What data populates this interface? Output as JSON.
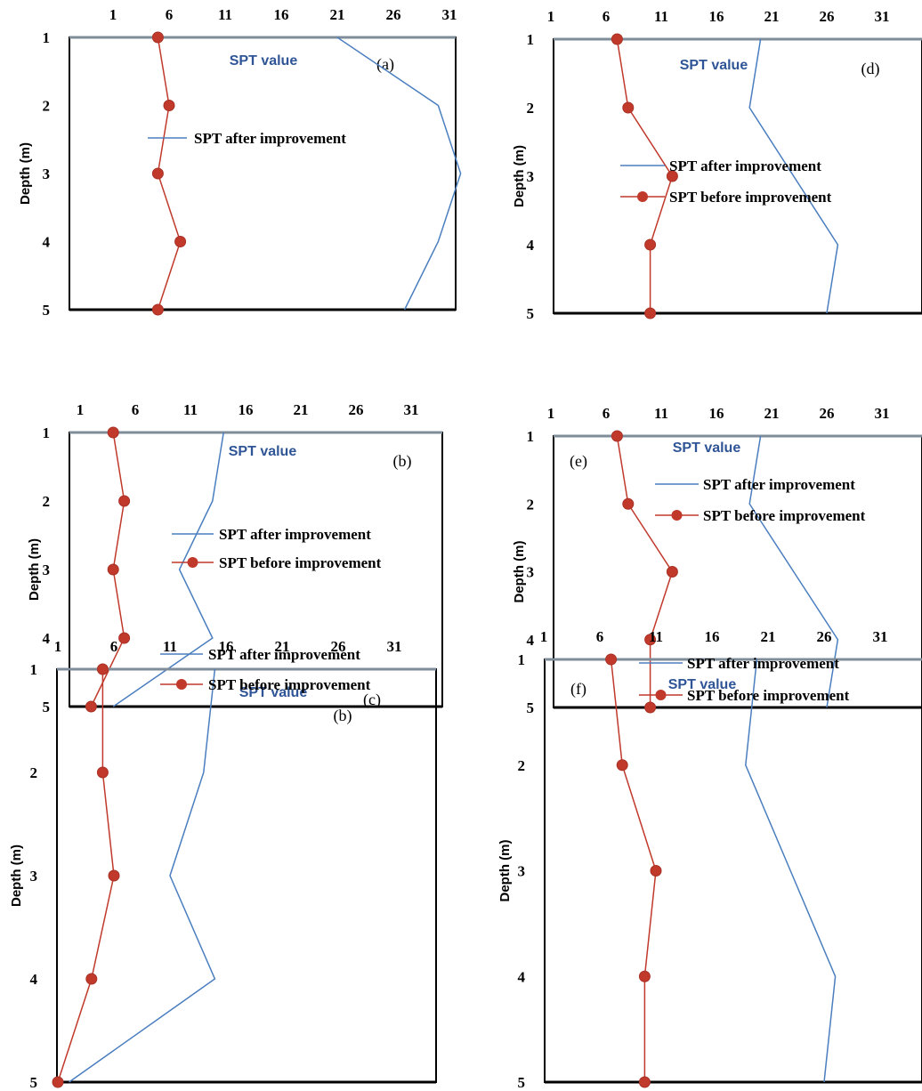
{
  "chart_data": [
    {
      "panel": "(a)",
      "type": "line",
      "xlabel": "SPT value",
      "ylabel": "Depth (m)",
      "x_ticks": [
        "1",
        "6",
        "11",
        "16",
        "21",
        "26",
        "31"
      ],
      "y_ticks": [
        "1",
        "2",
        "3",
        "4",
        "5"
      ],
      "xlim": [
        1,
        35
      ],
      "ylim": [
        1,
        5
      ],
      "series": [
        {
          "name": "SPT after improvement",
          "color": "#4a7ebf",
          "marker": false,
          "x": [
            21,
            30,
            32,
            30,
            27
          ],
          "depth": [
            1,
            2,
            3,
            4,
            5
          ]
        },
        {
          "name": "",
          "color": "#c0392b",
          "marker": true,
          "x": [
            5,
            6,
            5,
            7,
            5
          ],
          "depth": [
            1,
            2,
            3,
            4,
            5
          ]
        }
      ],
      "extra_labels": []
    },
    {
      "panel": "(b)",
      "type": "line",
      "xlabel": "SPT value",
      "ylabel": "Depth (m)",
      "x_ticks": [
        "1",
        "6",
        "11",
        "16",
        "21",
        "26",
        "31"
      ],
      "y_ticks": [
        "1",
        "2",
        "3",
        "4",
        "5"
      ],
      "xlim": [
        1,
        35
      ],
      "ylim": [
        1,
        5
      ],
      "series": [
        {
          "name": "SPT after improvement",
          "color": "#4a7ebf",
          "marker": false,
          "x": [
            14,
            13,
            10,
            13,
            4
          ],
          "depth": [
            1,
            2,
            3,
            4,
            5
          ]
        },
        {
          "name": "SPT before improvement",
          "color": "#c0392b",
          "marker": true,
          "x": [
            4,
            5,
            4,
            5,
            2
          ],
          "depth": [
            1,
            2,
            3,
            4,
            5
          ]
        }
      ],
      "extra_labels": []
    },
    {
      "panel": "(c)",
      "type": "line",
      "xlabel": "SPT value",
      "ylabel": "Depth (m)",
      "x_ticks": [
        "1",
        "6",
        "11",
        "16",
        "21",
        "26",
        "31"
      ],
      "y_ticks": [
        "1",
        "2",
        "3",
        "4",
        "5"
      ],
      "xlim": [
        1,
        35
      ],
      "ylim": [
        1,
        5
      ],
      "series": [
        {
          "name": "SPT after improvement",
          "color": "#4a7ebf",
          "marker": false,
          "x": [
            15,
            14,
            11,
            15,
            2
          ],
          "depth": [
            1,
            2,
            3,
            4,
            5
          ]
        },
        {
          "name": "SPT before improvement",
          "color": "#c0392b",
          "marker": true,
          "x": [
            5,
            5,
            6,
            4,
            1
          ],
          "depth": [
            1,
            2,
            3,
            4,
            5
          ]
        }
      ],
      "extra_labels": [
        "(b)"
      ]
    },
    {
      "panel": "(d)",
      "type": "line",
      "xlabel": "SPT value",
      "ylabel": "Depth (m)",
      "x_ticks": [
        "1",
        "6",
        "11",
        "16",
        "21",
        "26",
        "31"
      ],
      "y_ticks": [
        "1",
        "2",
        "3",
        "4",
        "5"
      ],
      "xlim": [
        1,
        35
      ],
      "ylim": [
        1,
        5
      ],
      "series": [
        {
          "name": "SPT after improvement",
          "color": "#4a7ebf",
          "marker": false,
          "x": [
            20,
            19,
            23,
            27,
            26
          ],
          "depth": [
            1,
            2,
            3,
            4,
            5
          ]
        },
        {
          "name": "SPT before improvement",
          "color": "#c0392b",
          "marker": true,
          "x": [
            7,
            8,
            12,
            10,
            10
          ],
          "depth": [
            1,
            2,
            3,
            4,
            5
          ]
        }
      ],
      "extra_labels": []
    },
    {
      "panel": "(e)",
      "type": "line",
      "xlabel": "SPT value",
      "ylabel": "Depth (m)",
      "x_ticks": [
        "1",
        "6",
        "11",
        "16",
        "21",
        "26",
        "31"
      ],
      "y_ticks": [
        "1",
        "2",
        "3",
        "4",
        "5"
      ],
      "xlim": [
        1,
        35
      ],
      "ylim": [
        1,
        5
      ],
      "series": [
        {
          "name": "SPT after improvement",
          "color": "#4a7ebf",
          "marker": false,
          "x": [
            20,
            19,
            23,
            27,
            26
          ],
          "depth": [
            1,
            2,
            3,
            4,
            5
          ]
        },
        {
          "name": "SPT before improvement",
          "color": "#c0392b",
          "marker": true,
          "x": [
            7,
            8,
            12,
            10,
            10
          ],
          "depth": [
            1,
            2,
            3,
            4,
            5
          ]
        }
      ],
      "extra_labels": []
    },
    {
      "panel": "(f)",
      "type": "line",
      "xlabel": "SPT value",
      "ylabel": "Depth (m)",
      "x_ticks": [
        "1",
        "6",
        "11",
        "16",
        "21",
        "26",
        "31"
      ],
      "y_ticks": [
        "1",
        "2",
        "3",
        "4",
        "5"
      ],
      "xlim": [
        1,
        35
      ],
      "ylim": [
        1,
        5
      ],
      "series": [
        {
          "name": "SPT after improvement",
          "color": "#4a7ebf",
          "marker": false,
          "x": [
            20,
            19,
            23,
            27,
            26
          ],
          "depth": [
            1,
            2,
            3,
            4,
            5
          ]
        },
        {
          "name": "SPT before improvement",
          "color": "#c0392b",
          "marker": true,
          "x": [
            7,
            8,
            11,
            10,
            10
          ],
          "depth": [
            1,
            2,
            3,
            4,
            5
          ]
        }
      ],
      "extra_labels": []
    }
  ]
}
